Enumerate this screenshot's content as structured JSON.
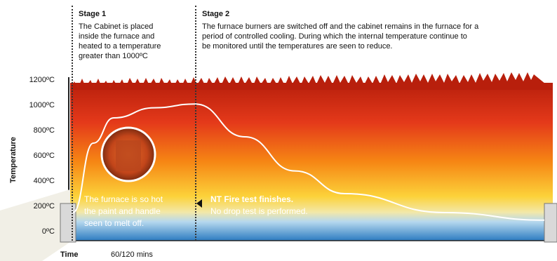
{
  "stage1": {
    "title": "Stage 1",
    "text": [
      "The Cabinet is placed",
      "inside the furnace and",
      "heated to a temperature",
      "greater than 1000ºC"
    ]
  },
  "stage2": {
    "title": "Stage 2",
    "text": [
      "The furnace burners are switched off and the cabinet remains in the furnace for a",
      "period of controlled cooling. During which the internal temperature continue to",
      "be monitored until the temperatures are seen to reduce."
    ]
  },
  "axis": {
    "ylabel": "Temperature",
    "ticks": [
      "1200ºC",
      "1000ºC",
      "800ºC",
      "600ºC",
      "400ºC",
      "200ºC",
      "0ºC"
    ],
    "xlabel": "Time",
    "xvalue": "60/120 mins"
  },
  "notes": {
    "furnace": [
      "The furnace is so hot",
      "the paint and handle",
      "seen to melt off."
    ],
    "finish_title": "NT Fire test finishes.",
    "finish_text": "No drop test is performed."
  },
  "colors": {
    "flame_top": "#d42c10",
    "flame_mid": "#f47a12",
    "flame_low": "#fbd63a",
    "cool_water": "#3d8fd0",
    "curve": "#ffffff"
  },
  "chart_data": {
    "type": "line",
    "xlabel": "Time",
    "ylabel": "Temperature",
    "ylim": [
      0,
      1200
    ],
    "yticks": [
      0,
      200,
      400,
      600,
      800,
      1000,
      1200
    ],
    "series": [
      {
        "values_x": [
          0,
          10,
          20,
          40,
          60
        ],
        "values_y": [
          150,
          700,
          900,
          980,
          1010
        ]
      },
      {
        "values_x": [
          60,
          80,
          100,
          120,
          160,
          200
        ],
        "values_y": [
          1010,
          750,
          480,
          300,
          150,
          90
        ]
      }
    ]
  }
}
